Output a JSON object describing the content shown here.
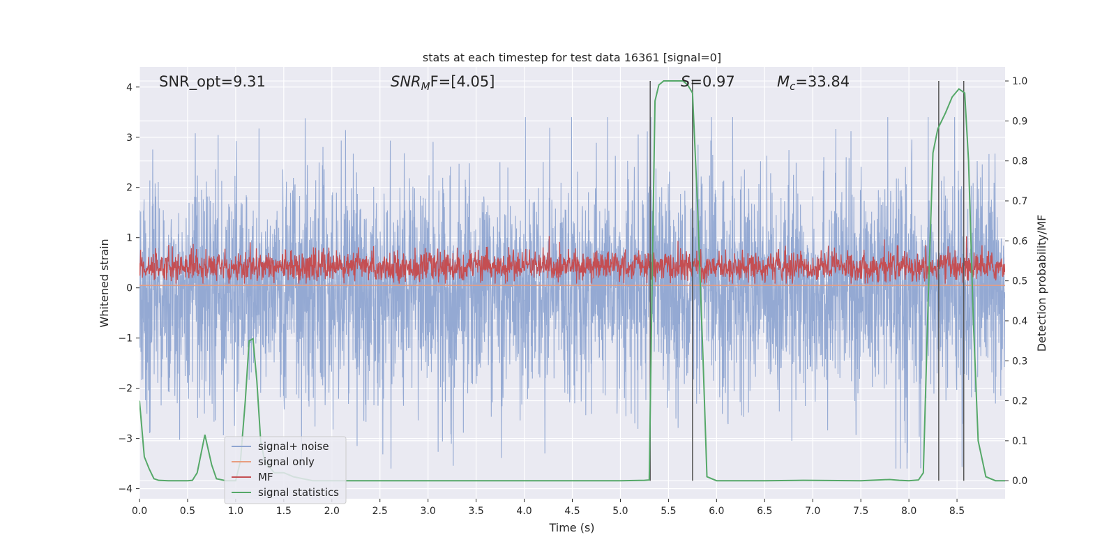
{
  "chart_data": {
    "type": "line",
    "title": "stats at each timestep for test data 16361 [signal=0]",
    "xlabel": "Time (s)",
    "ylabel": "Whitened strain",
    "ylabel_right": "Detection probability/MF",
    "xlim": [
      0,
      9
    ],
    "ylim": [
      -4.2,
      4.4
    ],
    "ylim_right": [
      -0.045,
      1.035
    ],
    "x_ticks": [
      0.0,
      0.5,
      1.0,
      1.5,
      2.0,
      2.5,
      3.0,
      3.5,
      4.0,
      4.5,
      5.0,
      5.5,
      6.0,
      6.5,
      7.0,
      7.5,
      8.0,
      8.5
    ],
    "x_tick_labels": [
      "0.0",
      "0.5",
      "1.0",
      "1.5",
      "2.0",
      "2.5",
      "3.0",
      "3.5",
      "4.0",
      "4.5",
      "5.0",
      "5.5",
      "6.0",
      "6.5",
      "7.0",
      "7.5",
      "8.0",
      "8.5"
    ],
    "y_ticks": [
      -4,
      -3,
      -2,
      -1,
      0,
      1,
      2,
      3,
      4
    ],
    "y_tick_labels": [
      "−4",
      "−3",
      "−2",
      "−1",
      "0",
      "1",
      "2",
      "3",
      "4"
    ],
    "y_ticks_right": [
      0.0,
      0.1,
      0.2,
      0.3,
      0.4,
      0.5,
      0.6,
      0.7,
      0.8,
      0.9,
      1.0
    ],
    "y_tick_labels_right": [
      "0.0",
      "0.1",
      "0.2",
      "0.3",
      "0.4",
      "0.5",
      "0.6",
      "0.7",
      "0.8",
      "0.9",
      "1.0"
    ],
    "grid": true,
    "legend_placement": "lower-left",
    "annotations": {
      "snr_opt": "SNR_opt=9.31",
      "snr_mf_main": "SNR",
      "snr_mf_sub": "M",
      "snr_mf_rest": "F=[4.05]",
      "s_main": "S",
      "s_rest": "=0.97",
      "mc_main": "M",
      "mc_sub": "c",
      "mc_rest": "=33.84"
    },
    "vertical_lines_x": [
      5.31,
      5.75,
      8.31,
      8.57
    ],
    "series": [
      {
        "name": "signal+ noise",
        "color": "#8fa5d1",
        "style": "dense noise, approx. range -3.6 to 3.4 with typical envelope ±1.8"
      },
      {
        "name": "signal only",
        "color": "#e89d7f",
        "y_value": 0.05
      },
      {
        "name": "MF",
        "color": "#c44e52",
        "axis": "right",
        "style": "dense, approx. range 0.49 to 0.61 on right axis"
      },
      {
        "name": "signal statistics",
        "color": "#55a868",
        "axis": "right",
        "x": [
          0.0,
          0.05,
          0.1,
          0.15,
          0.2,
          0.3,
          0.4,
          0.5,
          0.55,
          0.6,
          0.68,
          0.75,
          0.8,
          0.9,
          1.0,
          1.05,
          1.1,
          1.14,
          1.18,
          1.22,
          1.26,
          1.3,
          1.4,
          1.5,
          1.6,
          1.8,
          2.0,
          3.0,
          4.0,
          5.0,
          5.25,
          5.3,
          5.33,
          5.36,
          5.4,
          5.45,
          5.55,
          5.65,
          5.7,
          5.75,
          5.8,
          5.86,
          5.9,
          6.0,
          6.5,
          6.9,
          7.5,
          7.8,
          7.9,
          8.0,
          8.1,
          8.15,
          8.2,
          8.25,
          8.3,
          8.38,
          8.45,
          8.52,
          8.58,
          8.62,
          8.67,
          8.72,
          8.8,
          8.9,
          9.0
        ],
        "y": [
          0.2,
          0.06,
          0.03,
          0.005,
          0.001,
          0.0,
          0.0,
          0.0,
          0.001,
          0.02,
          0.115,
          0.04,
          0.005,
          0.0,
          0.0,
          0.05,
          0.2,
          0.35,
          0.355,
          0.25,
          0.1,
          0.05,
          0.02,
          0.02,
          0.01,
          0.0,
          0.0,
          0.0,
          0.0,
          0.0,
          0.001,
          0.002,
          0.5,
          0.95,
          0.99,
          1.0,
          1.0,
          1.0,
          0.99,
          0.97,
          0.7,
          0.3,
          0.01,
          0.0,
          0.0,
          0.001,
          0.0,
          0.003,
          0.001,
          0.0,
          0.002,
          0.02,
          0.45,
          0.82,
          0.88,
          0.92,
          0.96,
          0.98,
          0.97,
          0.8,
          0.4,
          0.1,
          0.01,
          0.0,
          0.0
        ]
      }
    ]
  }
}
